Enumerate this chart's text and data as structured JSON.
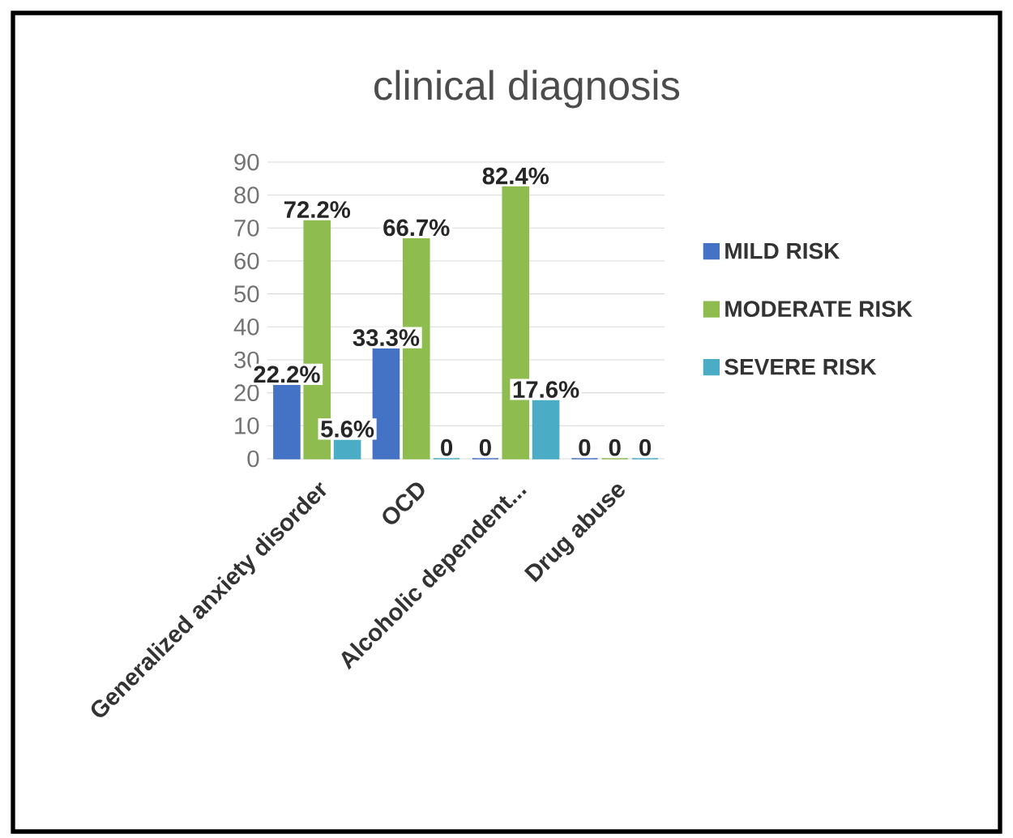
{
  "chart_data": {
    "type": "bar",
    "title": "clinical diagnosis",
    "categories": [
      "Generalized anxiety disorder",
      "OCD",
      "Alcoholic dependent...",
      "Drug abuse"
    ],
    "series": [
      {
        "name": "MILD RISK",
        "color": "#4472c4",
        "values": [
          22.2,
          33.3,
          0,
          0
        ],
        "value_labels": [
          "22.2%",
          "33.3%",
          "0",
          "0"
        ]
      },
      {
        "name": "MODERATE RISK",
        "color": "#8fbc4f",
        "values": [
          72.2,
          66.7,
          82.4,
          0
        ],
        "value_labels": [
          "72.2%",
          "66.7%",
          "82.4%",
          "0"
        ]
      },
      {
        "name": "SEVERE RISK",
        "color": "#4bacc6",
        "values": [
          5.6,
          0,
          17.6,
          0
        ],
        "value_labels": [
          "5.6%",
          "0",
          "17.6%",
          "0"
        ]
      }
    ],
    "ylim": [
      0,
      90
    ],
    "yticks": [
      0,
      10,
      20,
      30,
      40,
      50,
      60,
      70,
      80,
      90
    ],
    "grid": "y",
    "legend": "right"
  }
}
